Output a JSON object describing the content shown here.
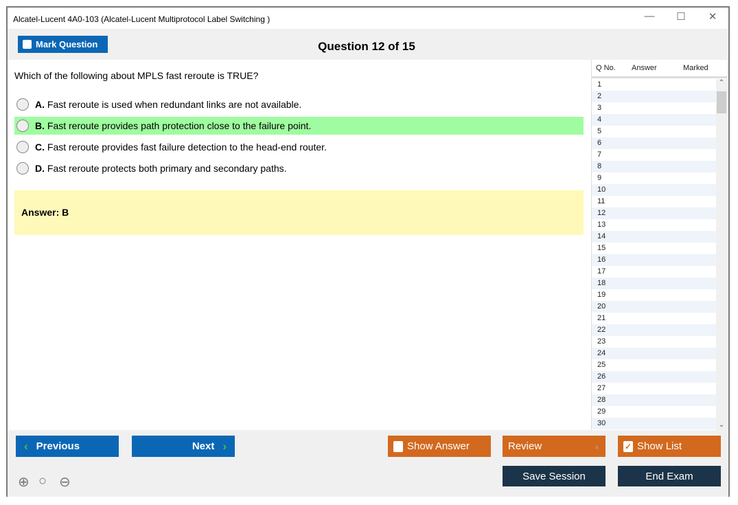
{
  "window": {
    "title": "Alcatel-Lucent 4A0-103 (Alcatel-Lucent Multiprotocol Label Switching )",
    "minimize": "—",
    "maximize": "☐",
    "close": "✕"
  },
  "toolbar": {
    "mark_label": "Mark Question",
    "question_counter": "Question 12 of 15"
  },
  "question": {
    "text": "Which of the following about MPLS fast reroute is TRUE?",
    "options": [
      {
        "letter": "A.",
        "text": "Fast reroute is used when redundant links are not available."
      },
      {
        "letter": "B.",
        "text": "Fast reroute provides path protection close to the failure point."
      },
      {
        "letter": "C.",
        "text": "Fast reroute provides fast failure detection to the head-end router."
      },
      {
        "letter": "D.",
        "text": "Fast reroute protects both primary and secondary paths."
      }
    ],
    "highlighted_option": "B",
    "answer": "Answer: B"
  },
  "panel": {
    "headers": [
      "Q No.",
      "Answer",
      "Marked"
    ],
    "rows": [
      "1",
      "2",
      "3",
      "4",
      "5",
      "6",
      "7",
      "8",
      "9",
      "10",
      "11",
      "12",
      "13",
      "14",
      "15",
      "16",
      "17",
      "18",
      "19",
      "20",
      "21",
      "22",
      "23",
      "24",
      "25",
      "26",
      "27",
      "28",
      "29",
      "30"
    ]
  },
  "buttons": {
    "previous": "Previous",
    "next": "Next",
    "show_answer": "Show Answer",
    "review": "Review",
    "show_list": "Show List",
    "save_session": "Save Session",
    "end_exam": "End Exam"
  },
  "colors": {
    "blue": "#0b67b5",
    "orange": "#d2691f",
    "dark": "#1b3449",
    "correct": "#a0fca0",
    "answer_bg": "#fff9b9"
  }
}
